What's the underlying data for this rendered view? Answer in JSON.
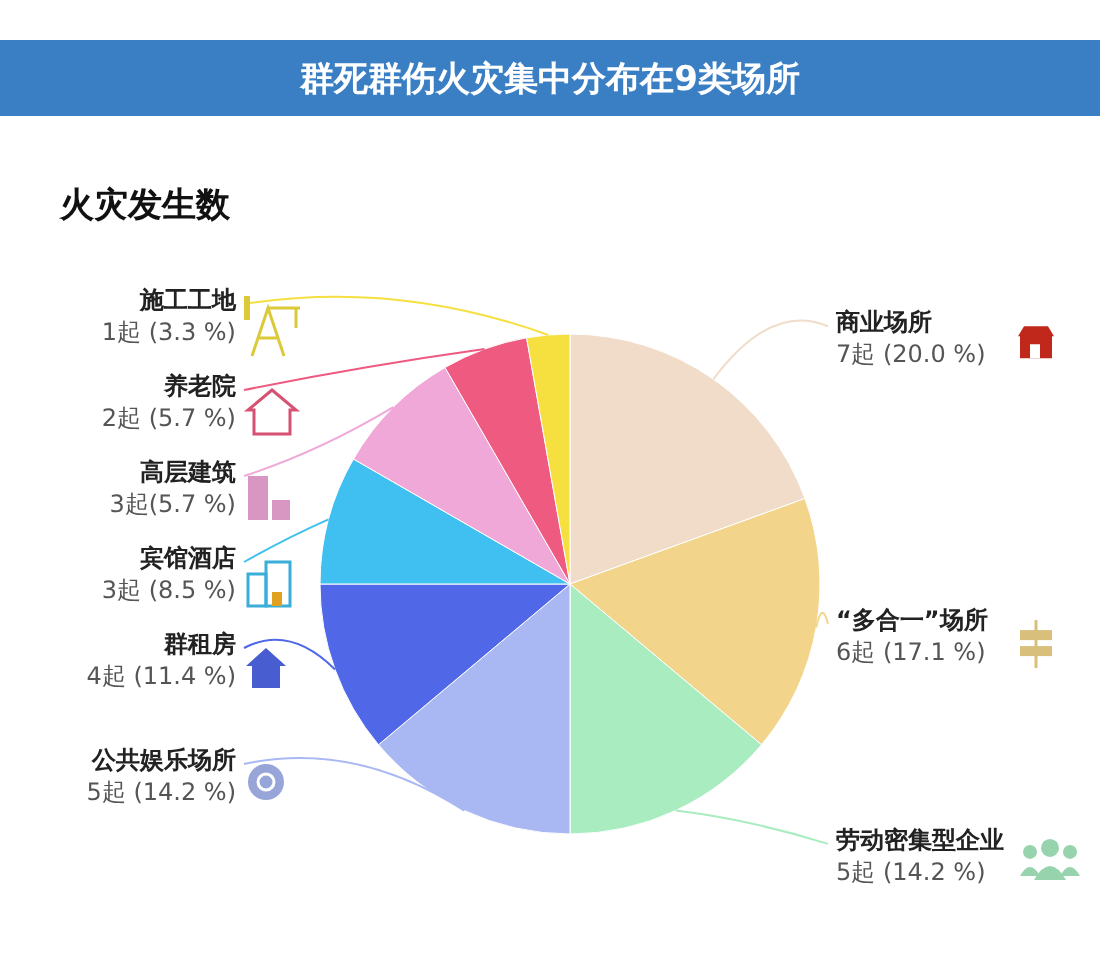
{
  "chart_data": {
    "type": "pie",
    "title": "群死群伤火灾集中分布在9类场所",
    "subtitle": "火灾发生数",
    "categories": [
      "商业场所",
      "“多合一”场所",
      "劳动密集型企业",
      "公共娱乐场所",
      "群租房",
      "宾馆酒店",
      "高层建筑",
      "养老院",
      "施工工地"
    ],
    "values": [
      7,
      6,
      5,
      5,
      4,
      3,
      3,
      2,
      1
    ],
    "value_labels": [
      "7起 (20.0 %)",
      "6起 (17.1 %)",
      "5起 (14.2 %)",
      "5起 (14.2 %)",
      "4起 (11.4 %)",
      "3起 (8.5 %)",
      "3起(5.7 %)",
      "2起 (5.7 %)",
      "1起 (3.3 %)"
    ],
    "colors": [
      "#f0dcc8",
      "#f2d58a",
      "#a8ecc0",
      "#a9b8f2",
      "#5068e8",
      "#40c0f0",
      "#f0a8d8",
      "#ee5a80",
      "#f5e040"
    ]
  }
}
